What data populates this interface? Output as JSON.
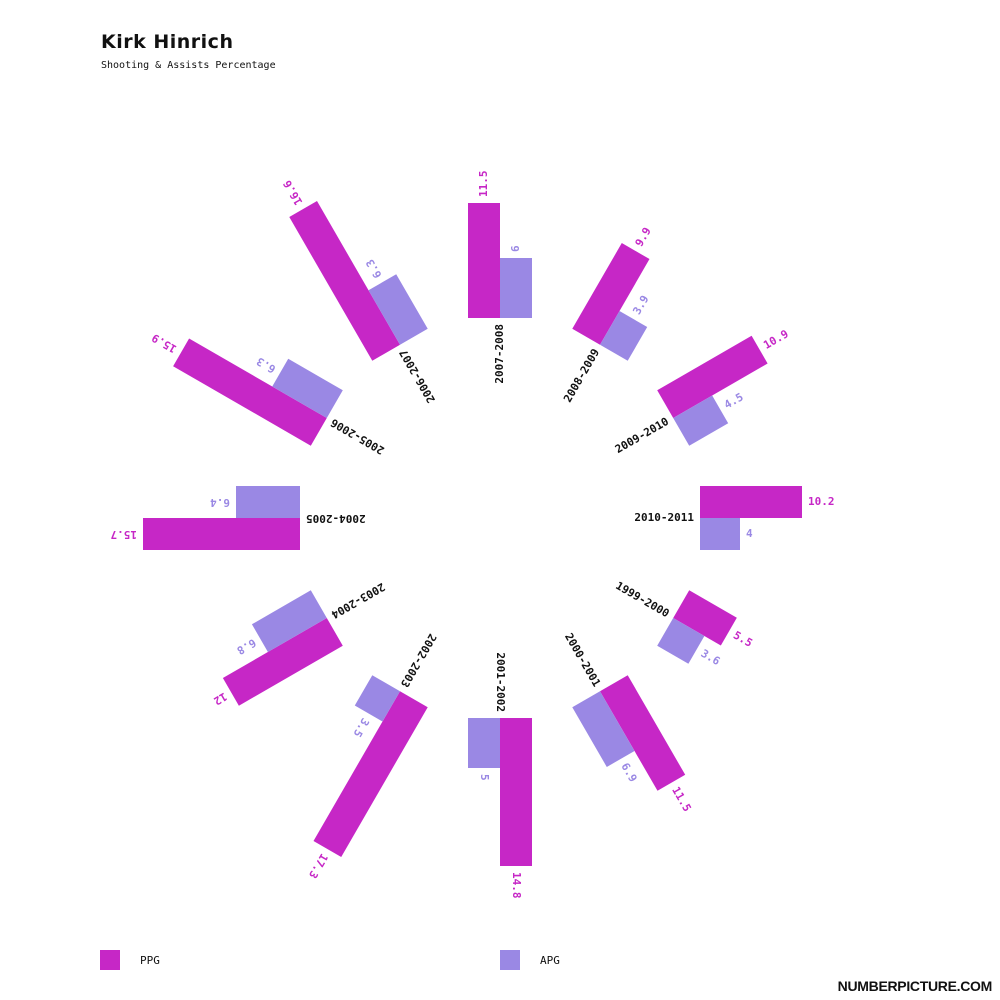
{
  "header": {
    "title": "Kirk Hinrich",
    "subtitle": "Shooting & Assists Percentage"
  },
  "colors": {
    "ppg": "#c627c6",
    "apg": "#9a88e4",
    "label": "#111111"
  },
  "legend": {
    "ppg_label": "PPG",
    "apg_label": "APG"
  },
  "branding": "NUMBERPICTURE.COM",
  "chart_data": {
    "type": "bar",
    "layout": "radial",
    "categories": [
      "2010-2011",
      "1999-2000",
      "2000-2001",
      "2001-2002",
      "2002-2003",
      "2003-2004",
      "2004-2005",
      "2005-2006",
      "2006-2007",
      "2007-2008",
      "2008-2009",
      "2009-2010"
    ],
    "series": [
      {
        "name": "PPG",
        "values": [
          10.2,
          5.5,
          11.5,
          14.8,
          17.3,
          12,
          15.7,
          15.9,
          16.6,
          11.5,
          9.9,
          10.9
        ]
      },
      {
        "name": "APG",
        "values": [
          4,
          3.6,
          6.9,
          5,
          3.5,
          6.8,
          6.4,
          6.3,
          6.3,
          6,
          3.9,
          4.5
        ]
      }
    ]
  }
}
